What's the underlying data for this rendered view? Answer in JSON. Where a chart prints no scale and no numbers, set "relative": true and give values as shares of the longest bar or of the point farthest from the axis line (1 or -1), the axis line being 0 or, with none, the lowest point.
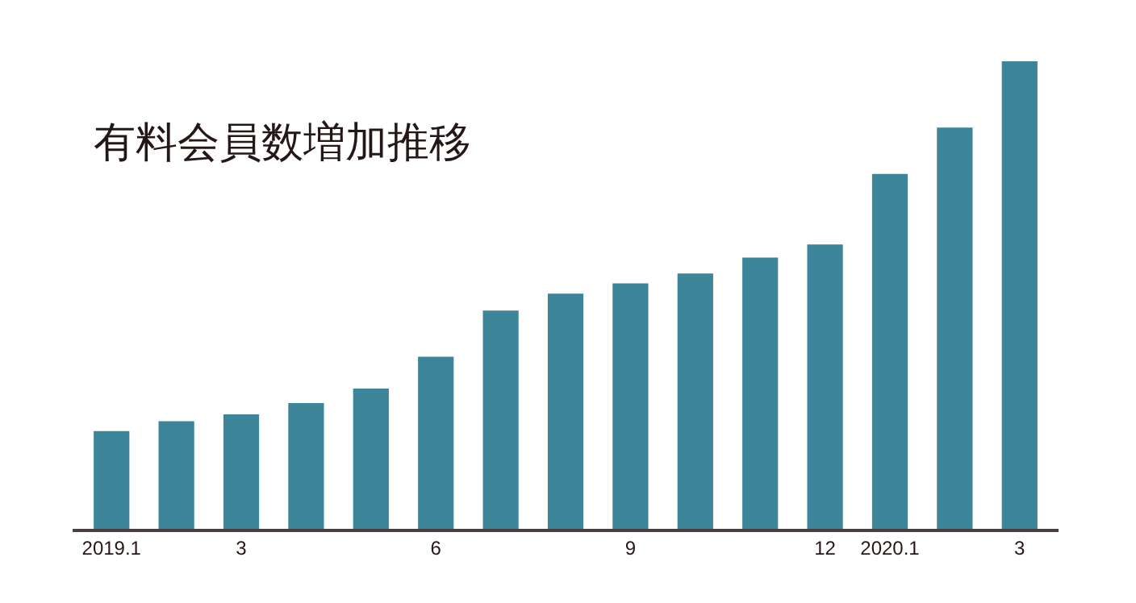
{
  "chart_data": {
    "type": "bar",
    "title": "有料会員数増加推移",
    "relative": true,
    "categories": [
      "2019.1",
      null,
      "3",
      null,
      null,
      "6",
      null,
      null,
      "9",
      null,
      null,
      "12",
      "2020.1",
      null,
      "3"
    ],
    "values": [
      0.209,
      0.23,
      0.245,
      0.269,
      0.3,
      0.368,
      0.467,
      0.503,
      0.525,
      0.546,
      0.58,
      0.608,
      0.759,
      0.858,
      1.0
    ],
    "color": "#3d8599"
  }
}
